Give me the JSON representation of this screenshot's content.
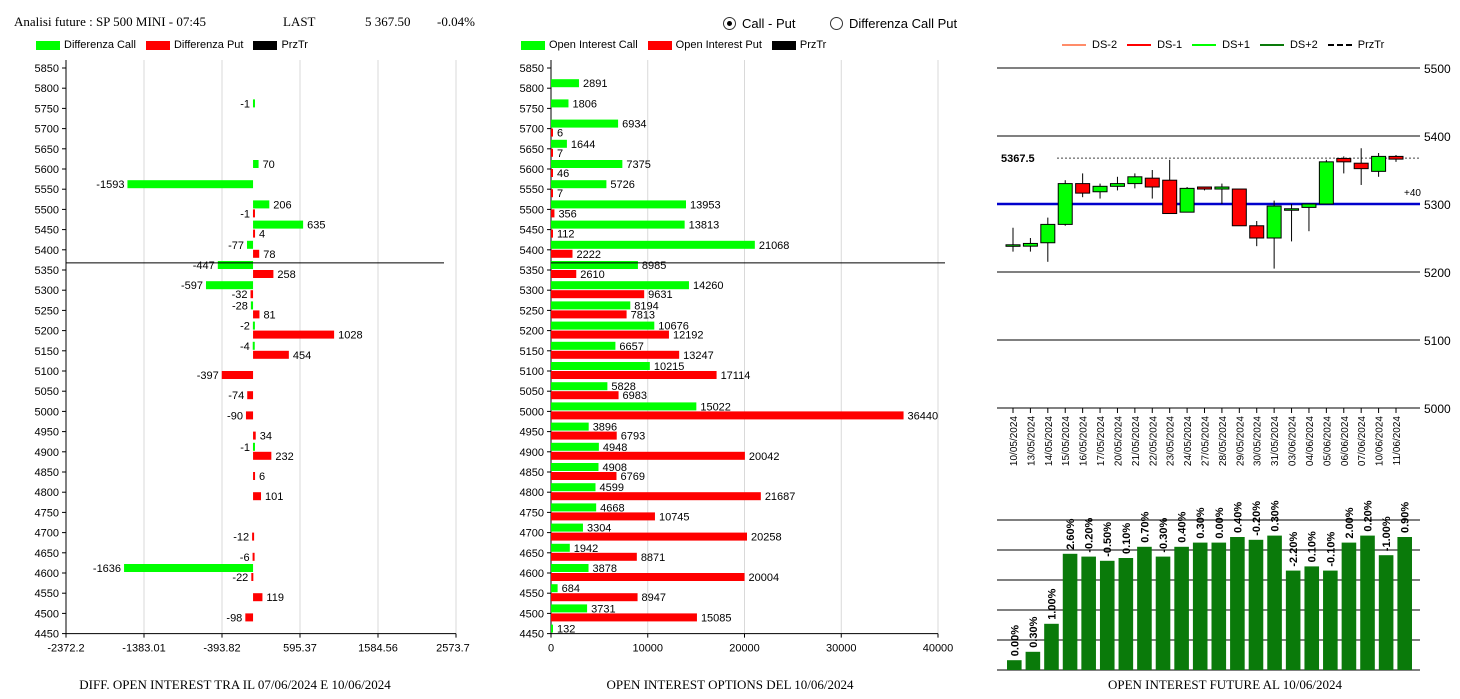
{
  "header": {
    "title": "Analisi future : SP 500 MINI - 07:45",
    "last_label": "LAST",
    "last_value": "5 367.50",
    "change": "-0.04%",
    "radio_options": [
      {
        "label": "Call - Put",
        "selected": true
      },
      {
        "label": "Differenza Call Put",
        "selected": false
      }
    ]
  },
  "colors": {
    "green": "#00ff00",
    "red": "#ff0000",
    "black": "#000000",
    "dark_green": "#0a7a0a",
    "blue": "#0000cc"
  },
  "captions": {
    "left": "DIFF. OPEN INTEREST TRA IL 07/06/2024 E 10/06/2024",
    "middle": "OPEN INTEREST OPTIONS DEL 10/06/2024",
    "right": "OPEN INTEREST FUTURE AL 10/06/2024"
  },
  "chart_data": [
    {
      "type": "bar",
      "orientation": "horizontal",
      "legend": [
        "Differenza Call",
        "Differenza Put",
        "PrzTr"
      ],
      "categories": [
        "5850",
        "5800",
        "5750",
        "5700",
        "5650",
        "5600",
        "5550",
        "5500",
        "5450",
        "5400",
        "5350",
        "5300",
        "5250",
        "5200",
        "5150",
        "5100",
        "5050",
        "5000",
        "4950",
        "4900",
        "4850",
        "4800",
        "4750",
        "4700",
        "4650",
        "4600",
        "4550",
        "4500",
        "4450"
      ],
      "series": [
        {
          "name": "Differenza Call",
          "values": [
            null,
            null,
            -1,
            null,
            null,
            70,
            -1593,
            206,
            635,
            -77,
            -447,
            -597,
            -28,
            -2,
            -4,
            null,
            null,
            null,
            null,
            -1,
            null,
            null,
            null,
            null,
            null,
            -1636,
            null,
            null,
            null
          ]
        },
        {
          "name": "Differenza Put",
          "values": [
            null,
            null,
            null,
            null,
            null,
            null,
            null,
            -1,
            4,
            78,
            258,
            -32,
            81,
            1028,
            454,
            -397,
            -74,
            -90,
            34,
            232,
            6,
            101,
            null,
            -12,
            -6,
            -22,
            119,
            -98,
            null
          ]
        }
      ],
      "x_ticks": [
        "-2372.2",
        "-1383.01",
        "-393.82",
        "595.37",
        "1584.56",
        "2573.75"
      ],
      "xlim": [
        -2372.2,
        2573.75
      ],
      "price_line": 5367.5
    },
    {
      "type": "bar",
      "orientation": "horizontal",
      "legend": [
        "Open Interest Call",
        "Open Interest Put",
        "PrzTr"
      ],
      "categories": [
        "5850",
        "5800",
        "5750",
        "5700",
        "5650",
        "5600",
        "5550",
        "5500",
        "5450",
        "5400",
        "5350",
        "5300",
        "5250",
        "5200",
        "5150",
        "5100",
        "5050",
        "5000",
        "4950",
        "4900",
        "4850",
        "4800",
        "4750",
        "4700",
        "4650",
        "4600",
        "4550",
        "4500",
        "4450"
      ],
      "series": [
        {
          "name": "Open Interest Call",
          "values": [
            null,
            2891,
            1806,
            6934,
            1644,
            7375,
            5726,
            13953,
            13813,
            21068,
            8985,
            14260,
            8194,
            10676,
            6657,
            10215,
            5828,
            15022,
            3896,
            4948,
            4908,
            4599,
            4668,
            3304,
            1942,
            3878,
            684,
            3731,
            132
          ]
        },
        {
          "name": "Open Interest Put",
          "values": [
            null,
            null,
            null,
            6,
            7,
            46,
            7,
            356,
            112,
            2222,
            2610,
            9631,
            7813,
            12192,
            13247,
            17114,
            6983,
            36440,
            6793,
            20042,
            6769,
            21687,
            10745,
            20258,
            8871,
            20004,
            8947,
            15085,
            null
          ]
        }
      ],
      "x_ticks": [
        "0",
        "10000",
        "20000",
        "30000",
        "40000"
      ],
      "xlim": [
        0,
        40000
      ],
      "price_line": 5367.5
    },
    {
      "type": "candlestick",
      "legend": [
        "DS-2",
        "DS-1",
        "DS+1",
        "DS+2",
        "PrzTr"
      ],
      "dates": [
        "10/05/2024",
        "13/05/2024",
        "14/05/2024",
        "15/05/2024",
        "16/05/2024",
        "17/05/2024",
        "20/05/2024",
        "21/05/2024",
        "22/05/2024",
        "23/05/2024",
        "24/05/2024",
        "27/05/2024",
        "28/05/2024",
        "29/05/2024",
        "30/05/2024",
        "31/05/2024",
        "03/06/2024",
        "04/06/2024",
        "05/06/2024",
        "06/06/2024",
        "07/06/2024",
        "10/06/2024",
        "11/06/2024"
      ],
      "ohlc": [
        [
          5240,
          5265,
          5230,
          5240
        ],
        [
          5238,
          5250,
          5230,
          5242
        ],
        [
          5243,
          5280,
          5215,
          5270
        ],
        [
          5270,
          5335,
          5268,
          5330
        ],
        [
          5330,
          5345,
          5310,
          5316
        ],
        [
          5318,
          5330,
          5308,
          5326
        ],
        [
          5326,
          5340,
          5320,
          5330
        ],
        [
          5330,
          5345,
          5323,
          5340
        ],
        [
          5338,
          5350,
          5308,
          5325
        ],
        [
          5335,
          5365,
          5288,
          5286
        ],
        [
          5288,
          5325,
          5288,
          5323
        ],
        [
          5325,
          5325,
          5320,
          5322
        ],
        [
          5322,
          5330,
          5300,
          5325
        ],
        [
          5322,
          5322,
          5270,
          5268
        ],
        [
          5268,
          5275,
          5238,
          5250
        ],
        [
          5250,
          5305,
          5205,
          5297
        ],
        [
          5293,
          5300,
          5245,
          5293
        ],
        [
          5295,
          5300,
          5260,
          5300
        ],
        [
          5300,
          5365,
          5300,
          5362
        ],
        [
          5367,
          5370,
          5345,
          5362
        ],
        [
          5360,
          5382,
          5328,
          5352
        ],
        [
          5348,
          5375,
          5340,
          5370
        ],
        [
          5370,
          5372,
          5362,
          5366
        ]
      ],
      "y_ticks": [
        "5500",
        "5400",
        "5300",
        "5200",
        "5100",
        "5000"
      ],
      "ylim": [
        5000,
        5500
      ],
      "price_label": "5367.5",
      "line_label": "+40",
      "blue_line": 5300
    },
    {
      "type": "bar",
      "labels": [
        "0.00%",
        "0.30%",
        "1.00%",
        "2.60%",
        "-0.20%",
        "-0.50%",
        "0.10%",
        "0.70%",
        "-0.30%",
        "0.40%",
        "0.30%",
        "0.00%",
        "0.40%",
        "-0.20%",
        "0.30%",
        "-2.20%",
        "0.10%",
        "-0.10%",
        "2.00%",
        "0.20%",
        "-1.00%",
        "0.90%"
      ],
      "values": [
        7,
        13,
        33,
        83,
        81,
        78,
        80,
        88,
        81,
        88,
        91,
        91,
        95,
        93,
        96,
        71,
        74,
        71,
        91,
        96,
        82,
        95
      ]
    }
  ]
}
